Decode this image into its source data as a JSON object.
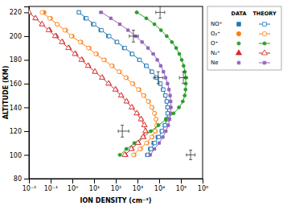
{
  "chart_data": {
    "type": "scatter",
    "xlabel": "ION DENSITY (cm⁻³)",
    "ylabel": "ALTITUDE (KM)",
    "log": "x",
    "grid": false,
    "legend": "right",
    "legend_columns": [
      "DATA",
      "THEORY"
    ],
    "xlim": [
      0.01,
      1000000
    ],
    "ylim": [
      80,
      225
    ],
    "xticks": [
      {
        "value": 0.01,
        "label": "10⁻²"
      },
      {
        "value": 0.1,
        "label": "10⁻¹"
      },
      {
        "value": 1,
        "label": "10⁰"
      },
      {
        "value": 10,
        "label": "10¹"
      },
      {
        "value": 100,
        "label": "10²"
      },
      {
        "value": 1000,
        "label": "10³"
      },
      {
        "value": 10000,
        "label": "10⁴"
      },
      {
        "value": 100000,
        "label": "10⁵"
      },
      {
        "value": 1000000,
        "label": "10⁶"
      }
    ],
    "yticks": [
      80,
      100,
      120,
      140,
      160,
      180,
      200,
      220
    ],
    "series": [
      {
        "name": "NO⁺",
        "legend_column": "DATA",
        "type": "scatter",
        "marker": "square",
        "x": [
          2800,
          3800,
          5500,
          8500,
          13000,
          18000,
          22000,
          24500,
          24000,
          22000,
          19000,
          15000,
          11000,
          7500,
          4500,
          2500,
          1200,
          550,
          240,
          110,
          45,
          20,
          9,
          4,
          2
        ],
        "values": [
          100,
          105,
          110,
          115,
          120,
          125,
          130,
          135,
          140,
          145,
          150,
          155,
          160,
          165,
          170,
          175,
          180,
          185,
          190,
          195,
          200,
          205,
          210,
          215,
          220
        ]
      },
      {
        "name": "NO⁺",
        "legend_column": "THEORY",
        "type": "line",
        "marker": "square-open",
        "line_style": "solid",
        "x": [
          3000,
          4200,
          6200,
          9500,
          13500,
          18500,
          22500,
          25000,
          24500,
          22500,
          19500,
          15500,
          11500,
          7800,
          4700,
          2600,
          1250,
          580,
          260,
          115,
          50,
          22,
          10,
          4.5,
          2
        ],
        "values": [
          100,
          105,
          110,
          115,
          120,
          125,
          130,
          135,
          140,
          145,
          150,
          155,
          160,
          165,
          170,
          175,
          180,
          185,
          190,
          195,
          200,
          205,
          210,
          215,
          220
        ]
      },
      {
        "name": "O₂⁺",
        "legend_column": "DATA",
        "type": "scatter",
        "marker": "circle",
        "x": [
          700,
          1400,
          2800,
          4800,
          6800,
          7800,
          7200,
          6200,
          4700,
          3300,
          2000,
          1200,
          620,
          310,
          150,
          70,
          30,
          13,
          6,
          2.5,
          1.0,
          0.5,
          0.2,
          0.1,
          0.05
        ],
        "values": [
          100,
          105,
          110,
          115,
          120,
          125,
          130,
          135,
          140,
          145,
          150,
          155,
          160,
          165,
          170,
          175,
          180,
          185,
          190,
          195,
          200,
          205,
          210,
          215,
          220
        ]
      },
      {
        "name": "O₂⁺",
        "legend_column": "THEORY",
        "type": "line",
        "marker": "circle-open",
        "line_style": "solid",
        "x": [
          650,
          1300,
          2600,
          4500,
          6500,
          7600,
          7000,
          6000,
          4500,
          3100,
          1900,
          1100,
          580,
          290,
          140,
          65,
          28,
          12,
          5.5,
          2.3,
          0.9,
          0.45,
          0.2,
          0.09,
          0.04
        ],
        "values": [
          100,
          105,
          110,
          115,
          120,
          125,
          130,
          135,
          140,
          145,
          150,
          155,
          160,
          165,
          170,
          175,
          180,
          185,
          190,
          195,
          200,
          205,
          210,
          215,
          220
        ]
      },
      {
        "name": "O⁺",
        "legend_column": "DATA",
        "type": "scatter",
        "marker": "dot",
        "x": [
          150,
          300,
          700,
          1700,
          4000,
          9000,
          20000,
          45000,
          80000,
          120000,
          148000,
          162000,
          168000,
          163000,
          152000,
          132000,
          108000,
          84000,
          60000,
          38000,
          22000,
          12000,
          6000,
          2500,
          900
        ],
        "values": [
          100,
          105,
          110,
          115,
          120,
          125,
          130,
          135,
          140,
          145,
          150,
          155,
          160,
          165,
          170,
          175,
          180,
          185,
          190,
          195,
          200,
          205,
          210,
          215,
          220
        ]
      },
      {
        "name": "O⁺",
        "legend_column": "THEORY",
        "type": "line",
        "marker": "dot",
        "line_style": "solid",
        "x": [
          160,
          320,
          750,
          1800,
          4200,
          9500,
          21000,
          47000,
          83000,
          124000,
          151000,
          164000,
          170000,
          165000,
          154000,
          134000,
          110000,
          85000,
          61000,
          39000,
          22500,
          12200,
          6100,
          2600,
          950
        ],
        "values": [
          100,
          105,
          110,
          115,
          120,
          125,
          130,
          135,
          140,
          145,
          150,
          155,
          160,
          165,
          170,
          175,
          180,
          185,
          190,
          195,
          200,
          205,
          210,
          215,
          220
        ]
      },
      {
        "name": "N₂⁺",
        "legend_column": "DATA",
        "type": "scatter",
        "marker": "triangle",
        "x": [
          280,
          550,
          1100,
          1900,
          2400,
          2100,
          1500,
          950,
          560,
          320,
          180,
          100,
          48,
          24,
          11,
          5.5,
          2.8,
          1.4,
          0.7,
          0.35,
          0.18,
          0.09,
          0.04,
          0.02,
          0.01
        ],
        "values": [
          100,
          105,
          110,
          115,
          120,
          125,
          130,
          135,
          140,
          145,
          150,
          155,
          160,
          165,
          170,
          175,
          180,
          185,
          190,
          195,
          200,
          205,
          210,
          215,
          220
        ]
      },
      {
        "name": "N₂⁺",
        "legend_column": "THEORY",
        "type": "line",
        "marker": "triangle-open",
        "line_style": "solid",
        "x": [
          260,
          520,
          1050,
          1800,
          2300,
          2050,
          1450,
          920,
          540,
          310,
          175,
          95,
          46,
          23,
          11,
          5.2,
          2.6,
          1.3,
          0.65,
          0.33,
          0.16,
          0.08,
          0.04,
          0.02,
          0.01
        ],
        "values": [
          100,
          105,
          110,
          115,
          120,
          125,
          130,
          135,
          140,
          145,
          150,
          155,
          160,
          165,
          170,
          175,
          180,
          185,
          190,
          195,
          200,
          205,
          210,
          215,
          220
        ]
      },
      {
        "name": "Ne",
        "legend_column": "DATA",
        "type": "scatter",
        "marker": "square-small",
        "x": [
          3800,
          6000,
          9800,
          14500,
          20000,
          26000,
          30000,
          33000,
          34500,
          33500,
          31500,
          28000,
          24000,
          19500,
          15500,
          11500,
          8000,
          5200,
          3000,
          1600,
          800,
          360,
          150,
          58,
          20
        ],
        "values": [
          100,
          105,
          110,
          115,
          120,
          125,
          130,
          135,
          140,
          145,
          150,
          155,
          160,
          165,
          170,
          175,
          180,
          185,
          190,
          195,
          200,
          205,
          210,
          215,
          220
        ]
      },
      {
        "name": "Ne",
        "legend_column": "THEORY",
        "type": "line",
        "marker": "square-small",
        "line_style": "solid",
        "x": [
          3900,
          6100,
          10000,
          14800,
          20500,
          26500,
          30500,
          33500,
          35000,
          34000,
          32000,
          28500,
          24500,
          20000,
          16000,
          12000,
          8300,
          5400,
          3100,
          1650,
          820,
          370,
          155,
          60,
          22
        ],
        "values": [
          100,
          105,
          110,
          115,
          120,
          125,
          130,
          135,
          140,
          145,
          150,
          155,
          160,
          165,
          170,
          175,
          180,
          185,
          190,
          195,
          200,
          205,
          210,
          215,
          220
        ]
      }
    ],
    "error_bars": [
      {
        "x": 200,
        "y": 120,
        "xerr_lo": 130,
        "xerr_hi": 400,
        "yerr": 5
      },
      {
        "x": 650,
        "y": 200,
        "xerr_lo": 420,
        "xerr_hi": 1100,
        "yerr": 5
      },
      {
        "x": 9000,
        "y": 165,
        "xerr_lo": 5500,
        "xerr_hi": 15000,
        "yerr": 5
      },
      {
        "x": 11000,
        "y": 220,
        "xerr_lo": 7000,
        "xerr_hi": 18000,
        "yerr": 5
      },
      {
        "x": 130000,
        "y": 165,
        "xerr_lo": 85000,
        "xerr_hi": 200000,
        "yerr": 5
      },
      {
        "x": 280000,
        "y": 100,
        "xerr_lo": 180000,
        "xerr_hi": 450000,
        "yerr": 4
      }
    ]
  }
}
